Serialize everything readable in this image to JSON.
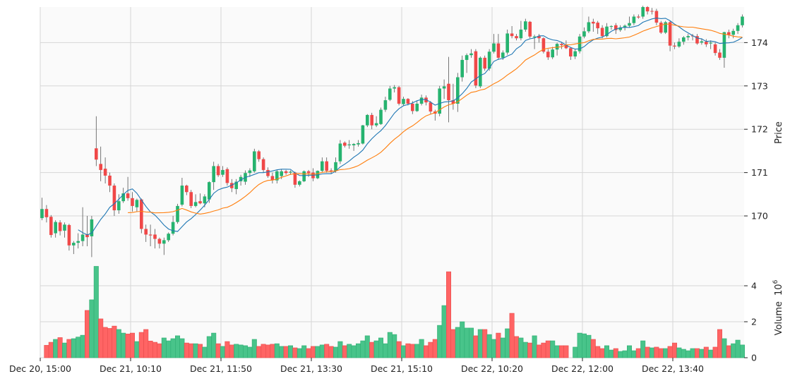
{
  "chart_data": {
    "type": "candlestick",
    "title": "",
    "ylabel": "Price",
    "volume_label": "Volume",
    "volume_exponent_base": "10",
    "volume_exponent": "6",
    "ylim": [
      169.04,
      174.82
    ],
    "volume_ylim": [
      0,
      5.57
    ],
    "price_ticks": [
      "170",
      "171",
      "172",
      "173",
      "174"
    ],
    "volume_ticks": [
      "0",
      "2",
      "4"
    ],
    "x_tick_labels": [
      {
        "index": 0,
        "label": "Dec 20, 15:00"
      },
      {
        "index": 20,
        "label": "Dec 21, 10:10"
      },
      {
        "index": 40,
        "label": "Dec 21, 11:50"
      },
      {
        "index": 60,
        "label": "Dec 21, 13:30"
      },
      {
        "index": 80,
        "label": "Dec 21, 15:10"
      },
      {
        "index": 100,
        "label": "Dec 22, 10:20"
      },
      {
        "index": 120,
        "label": "Dec 22, 12:00"
      },
      {
        "index": 140,
        "label": "Dec 22, 13:40"
      }
    ],
    "grid": true,
    "mav": [
      9,
      20
    ],
    "colors": {
      "up": "#26b36f",
      "down": "#f04848",
      "vol_up": "#48c48a",
      "vol_down": "#ff6464",
      "mav1": "#1f77b4",
      "mav2": "#ff7f0e",
      "panel_bg": "#fafafa",
      "grid": "#d6d6d6",
      "wick": "#555555"
    },
    "ohlc": [
      [
        169.95,
        170.42,
        169.9,
        170.16
      ],
      [
        170.16,
        170.25,
        169.85,
        169.97
      ],
      [
        169.98,
        170.02,
        169.5,
        169.56
      ],
      [
        169.6,
        169.9,
        169.5,
        169.86
      ],
      [
        169.85,
        169.9,
        169.55,
        169.65
      ],
      [
        169.66,
        169.85,
        169.5,
        169.8
      ],
      [
        169.79,
        169.82,
        169.2,
        169.32
      ],
      [
        169.32,
        169.42,
        169.12,
        169.38
      ],
      [
        169.38,
        169.6,
        169.25,
        169.42
      ],
      [
        169.42,
        170.2,
        169.3,
        169.57
      ],
      [
        169.57,
        170.0,
        169.3,
        169.51
      ],
      [
        169.53,
        170.0,
        169.05,
        169.92
      ],
      [
        171.56,
        172.3,
        171.15,
        171.3
      ],
      [
        171.2,
        171.6,
        170.8,
        171.06
      ],
      [
        171.09,
        171.35,
        170.75,
        170.93
      ],
      [
        170.93,
        171.0,
        170.55,
        170.7
      ],
      [
        170.7,
        170.75,
        170.0,
        170.13
      ],
      [
        170.13,
        170.5,
        170.05,
        170.34
      ],
      [
        170.34,
        170.65,
        170.3,
        170.52
      ],
      [
        170.52,
        170.9,
        170.35,
        170.41
      ],
      [
        170.41,
        170.55,
        170.1,
        170.23
      ],
      [
        170.2,
        170.4,
        170.1,
        170.37
      ],
      [
        170.38,
        170.4,
        169.6,
        169.7
      ],
      [
        169.7,
        169.8,
        169.4,
        169.57
      ],
      [
        169.57,
        169.8,
        169.3,
        169.55
      ],
      [
        169.57,
        169.7,
        169.25,
        169.47
      ],
      [
        169.47,
        169.5,
        169.25,
        169.36
      ],
      [
        169.36,
        169.5,
        169.1,
        169.44
      ],
      [
        169.44,
        169.62,
        169.4,
        169.59
      ],
      [
        169.59,
        170.0,
        169.55,
        169.86
      ],
      [
        169.86,
        170.28,
        169.82,
        170.23
      ],
      [
        170.26,
        170.88,
        170.22,
        170.7
      ],
      [
        170.7,
        170.72,
        170.48,
        170.55
      ],
      [
        170.55,
        170.6,
        170.18,
        170.23
      ],
      [
        170.23,
        170.5,
        170.2,
        170.32
      ],
      [
        170.34,
        170.52,
        170.27,
        170.29
      ],
      [
        170.29,
        170.5,
        170.2,
        170.45
      ],
      [
        170.38,
        170.8,
        170.3,
        170.78
      ],
      [
        170.78,
        171.25,
        170.6,
        171.15
      ],
      [
        171.15,
        171.2,
        170.9,
        170.94
      ],
      [
        170.95,
        171.15,
        170.9,
        171.06
      ],
      [
        171.08,
        171.12,
        170.7,
        170.76
      ],
      [
        170.76,
        170.85,
        170.55,
        170.64
      ],
      [
        170.62,
        170.85,
        170.5,
        170.79
      ],
      [
        170.8,
        170.95,
        170.7,
        170.9
      ],
      [
        170.79,
        171.05,
        170.72,
        170.99
      ],
      [
        170.99,
        171.1,
        170.9,
        171.05
      ],
      [
        171.03,
        171.55,
        171.0,
        171.49
      ],
      [
        171.49,
        171.52,
        171.25,
        171.31
      ],
      [
        171.31,
        171.35,
        171.0,
        171.06
      ],
      [
        171.06,
        171.12,
        170.88,
        170.92
      ],
      [
        170.92,
        171.0,
        170.75,
        170.83
      ],
      [
        170.82,
        171.07,
        170.75,
        171.03
      ],
      [
        170.92,
        171.08,
        170.85,
        171.03
      ],
      [
        171.03,
        171.06,
        170.95,
        170.99
      ],
      [
        171.0,
        171.05,
        170.95,
        171.02
      ],
      [
        171.0,
        171.02,
        170.65,
        170.72
      ],
      [
        170.72,
        170.82,
        170.68,
        170.8
      ],
      [
        170.8,
        171.05,
        170.78,
        171.03
      ],
      [
        171.03,
        171.06,
        170.9,
        170.99
      ],
      [
        171.0,
        171.1,
        170.8,
        170.87
      ],
      [
        170.87,
        171.05,
        170.85,
        171.04
      ],
      [
        171.04,
        171.35,
        171.0,
        171.26
      ],
      [
        171.26,
        171.35,
        171.0,
        171.04
      ],
      [
        171.05,
        171.1,
        170.98,
        171.02
      ],
      [
        171.04,
        171.35,
        171.0,
        171.24
      ],
      [
        171.26,
        171.75,
        171.2,
        171.67
      ],
      [
        171.69,
        171.72,
        171.58,
        171.62
      ],
      [
        171.63,
        171.75,
        171.55,
        171.65
      ],
      [
        171.63,
        171.68,
        171.5,
        171.66
      ],
      [
        171.65,
        171.75,
        171.6,
        171.68
      ],
      [
        171.67,
        172.1,
        171.65,
        172.09
      ],
      [
        172.09,
        172.35,
        172.05,
        172.33
      ],
      [
        172.33,
        172.38,
        172.0,
        172.09
      ],
      [
        172.09,
        172.3,
        172.05,
        172.14
      ],
      [
        172.12,
        172.5,
        172.1,
        172.45
      ],
      [
        172.45,
        172.75,
        172.4,
        172.67
      ],
      [
        172.68,
        173.0,
        172.65,
        172.94
      ],
      [
        172.94,
        173.02,
        172.85,
        172.97
      ],
      [
        172.97,
        173.0,
        172.55,
        172.59
      ],
      [
        172.58,
        172.75,
        172.55,
        172.7
      ],
      [
        172.7,
        172.72,
        172.55,
        172.59
      ],
      [
        172.59,
        172.65,
        172.35,
        172.42
      ],
      [
        172.42,
        172.65,
        172.4,
        172.59
      ],
      [
        172.59,
        172.8,
        172.55,
        172.73
      ],
      [
        172.73,
        172.78,
        172.55,
        172.62
      ],
      [
        172.62,
        172.65,
        172.35,
        172.41
      ],
      [
        172.41,
        172.45,
        172.2,
        172.36
      ],
      [
        172.36,
        173.0,
        172.3,
        172.94
      ],
      [
        172.94,
        173.15,
        172.7,
        172.99
      ],
      [
        173.05,
        173.67,
        172.16,
        172.67
      ],
      [
        172.67,
        173.05,
        172.45,
        172.59
      ],
      [
        172.59,
        173.3,
        172.4,
        173.2
      ],
      [
        173.2,
        173.7,
        173.1,
        173.6
      ],
      [
        173.6,
        173.75,
        173.3,
        173.71
      ],
      [
        173.71,
        173.85,
        173.65,
        173.75
      ],
      [
        173.8,
        173.85,
        172.95,
        173.01
      ],
      [
        172.99,
        173.68,
        172.95,
        173.65
      ],
      [
        173.65,
        173.7,
        173.35,
        173.4
      ],
      [
        173.4,
        173.85,
        173.35,
        173.79
      ],
      [
        173.79,
        174.2,
        173.75,
        173.98
      ],
      [
        173.98,
        174.2,
        173.6,
        173.65
      ],
      [
        173.65,
        173.82,
        173.6,
        173.77
      ],
      [
        173.77,
        174.3,
        173.72,
        174.21
      ],
      [
        174.21,
        174.38,
        174.1,
        174.15
      ],
      [
        174.15,
        174.2,
        174.05,
        174.1
      ],
      [
        174.1,
        174.5,
        174.05,
        174.3
      ],
      [
        174.3,
        174.55,
        174.25,
        174.49
      ],
      [
        174.48,
        174.5,
        174.1,
        174.14
      ],
      [
        174.12,
        174.18,
        173.85,
        174.14
      ],
      [
        174.15,
        174.2,
        174.0,
        174.1
      ],
      [
        174.1,
        174.12,
        173.75,
        173.79
      ],
      [
        173.79,
        173.85,
        173.6,
        173.66
      ],
      [
        173.66,
        173.9,
        173.62,
        173.84
      ],
      [
        173.84,
        174.0,
        173.7,
        173.97
      ],
      [
        173.97,
        174.0,
        173.85,
        173.94
      ],
      [
        173.95,
        174.05,
        173.85,
        173.87
      ],
      [
        173.87,
        173.9,
        173.6,
        173.68
      ],
      [
        173.68,
        173.85,
        173.62,
        173.8
      ],
      [
        173.8,
        174.2,
        173.75,
        174.14
      ],
      [
        174.14,
        174.35,
        174.1,
        174.26
      ],
      [
        174.26,
        174.6,
        174.22,
        174.47
      ],
      [
        174.48,
        174.55,
        174.25,
        174.44
      ],
      [
        174.46,
        174.5,
        174.2,
        174.33
      ],
      [
        174.34,
        174.4,
        174.1,
        174.15
      ],
      [
        174.15,
        174.45,
        174.12,
        174.37
      ],
      [
        174.37,
        174.4,
        174.3,
        174.38
      ],
      [
        174.4,
        174.45,
        174.2,
        174.29
      ],
      [
        174.29,
        174.4,
        174.25,
        174.35
      ],
      [
        174.35,
        174.42,
        174.28,
        174.39
      ],
      [
        174.39,
        174.6,
        174.35,
        174.45
      ],
      [
        174.45,
        174.65,
        174.4,
        174.6
      ],
      [
        174.6,
        174.65,
        174.55,
        174.58
      ],
      [
        174.6,
        174.85,
        174.55,
        174.82
      ],
      [
        174.82,
        174.84,
        174.65,
        174.72
      ],
      [
        174.73,
        174.8,
        174.65,
        174.72
      ],
      [
        174.73,
        174.78,
        174.4,
        174.46
      ],
      [
        174.46,
        174.5,
        174.2,
        174.23
      ],
      [
        174.23,
        174.5,
        174.2,
        174.47
      ],
      [
        174.47,
        174.5,
        173.8,
        173.93
      ],
      [
        173.93,
        174.0,
        173.85,
        173.91
      ],
      [
        173.91,
        174.1,
        173.88,
        174.02
      ],
      [
        174.02,
        174.15,
        173.95,
        174.12
      ],
      [
        174.12,
        174.2,
        174.05,
        174.15
      ],
      [
        174.16,
        174.2,
        174.05,
        174.15
      ],
      [
        174.15,
        174.2,
        173.95,
        173.98
      ],
      [
        174.0,
        174.1,
        173.95,
        174.03
      ],
      [
        174.02,
        174.08,
        173.9,
        173.96
      ],
      [
        173.98,
        174.05,
        173.85,
        174.0
      ],
      [
        173.96,
        174.0,
        173.7,
        173.76
      ],
      [
        173.77,
        173.85,
        173.6,
        173.65
      ],
      [
        173.65,
        174.25,
        173.42,
        174.24
      ],
      [
        174.24,
        174.3,
        174.1,
        174.18
      ],
      [
        174.18,
        174.32,
        174.1,
        174.27
      ],
      [
        174.27,
        174.45,
        174.2,
        174.4
      ],
      [
        174.4,
        174.65,
        174.35,
        174.6
      ]
    ],
    "volume": [
      null,
      0.69,
      0.86,
      1.02,
      1.12,
      0.82,
      1.02,
      1.06,
      1.15,
      1.25,
      2.63,
      3.22,
      5.08,
      2.16,
      1.69,
      1.63,
      1.76,
      1.57,
      1.37,
      1.32,
      1.37,
      0.9,
      1.41,
      1.57,
      0.93,
      0.86,
      0.78,
      1.1,
      0.94,
      1.06,
      1.22,
      1.06,
      0.82,
      0.78,
      0.78,
      0.75,
      0.59,
      1.18,
      1.37,
      0.78,
      0.63,
      0.9,
      0.71,
      0.75,
      0.71,
      0.67,
      0.59,
      1.02,
      0.63,
      0.75,
      0.71,
      0.75,
      0.78,
      0.63,
      0.63,
      0.67,
      0.55,
      0.51,
      0.67,
      0.51,
      0.63,
      0.63,
      0.71,
      0.75,
      0.63,
      0.59,
      0.9,
      0.67,
      0.75,
      0.67,
      0.78,
      0.94,
      1.22,
      0.86,
      0.94,
      1.1,
      0.78,
      1.41,
      1.29,
      0.9,
      0.67,
      0.78,
      0.75,
      0.75,
      1.02,
      0.67,
      0.86,
      1.02,
      1.8,
      2.9,
      4.78,
      1.57,
      1.69,
      2.0,
      1.65,
      1.65,
      1.22,
      1.57,
      1.57,
      1.29,
      1.02,
      1.37,
      1.1,
      1.61,
      2.47,
      1.18,
      1.1,
      0.86,
      0.82,
      1.22,
      0.71,
      0.82,
      0.94,
      0.94,
      0.67,
      0.67,
      0.67,
      null,
      0.59,
      1.37,
      1.33,
      1.25,
      1.02,
      0.63,
      0.51,
      0.67,
      0.43,
      0.51,
      0.35,
      0.39,
      0.67,
      0.39,
      0.51,
      0.94,
      0.59,
      0.55,
      0.59,
      0.51,
      0.51,
      0.63,
      0.82,
      0.55,
      0.47,
      0.39,
      0.51,
      0.51,
      0.47,
      0.59,
      0.43,
      0.59,
      1.57,
      1.06,
      0.67,
      0.78,
      0.98,
      0.71
    ]
  }
}
